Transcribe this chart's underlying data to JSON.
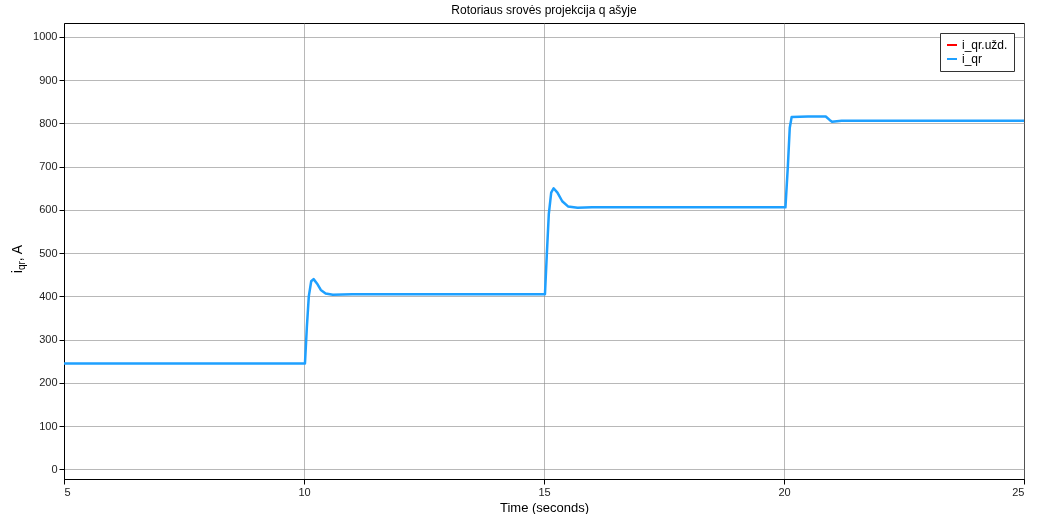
{
  "chart_data": {
    "type": "line",
    "title": "Rotoriaus srovės projekcija q ašyje",
    "xlabel": "Time (seconds)",
    "ylabel": "i$_{qr}$, A",
    "xlim": [
      5,
      25
    ],
    "xticks": [
      5,
      10,
      15,
      20,
      25
    ],
    "ylim": [
      -22,
      1032
    ],
    "yticks": [
      0,
      100,
      200,
      300,
      400,
      500,
      600,
      700,
      800,
      900,
      1000
    ],
    "grid": true,
    "legend": "top right",
    "marker": "none",
    "line_style": "solid",
    "series": [
      {
        "name": "i_qr.užd.",
        "color": "#ff0000"
      },
      {
        "name": "i_qr",
        "color": "#1ea0ff",
        "x": [
          5,
          10.02,
          10.06,
          10.1,
          10.15,
          10.2,
          10.27,
          10.35,
          10.45,
          10.6,
          11,
          15,
          15.02,
          15.06,
          15.1,
          15.15,
          15.2,
          15.28,
          15.38,
          15.5,
          15.7,
          16,
          20,
          20.03,
          20.08,
          20.12,
          20.16,
          20.5,
          20.87,
          20.95,
          21.0,
          21.2,
          25
        ],
        "values": [
          245,
          245,
          330,
          400,
          435,
          440,
          430,
          415,
          407,
          404,
          405,
          405,
          405,
          500,
          590,
          640,
          650,
          640,
          620,
          608,
          605,
          606,
          606,
          606,
          700,
          790,
          815,
          816,
          816,
          808,
          804,
          806,
          806
        ]
      }
    ]
  }
}
